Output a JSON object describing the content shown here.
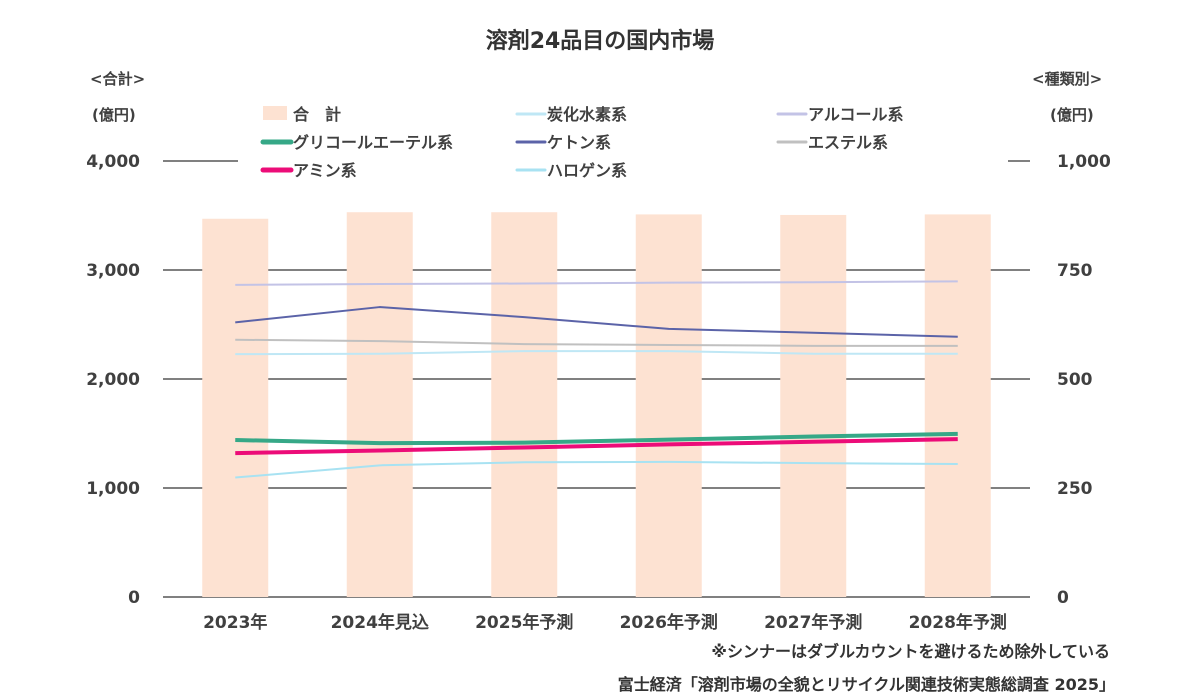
{
  "chart_data": {
    "type": "bar",
    "title": "溶剤24品目の国内市場",
    "categories": [
      "2023年",
      "2024年見込",
      "2025年予測",
      "2026年予測",
      "2027年予測",
      "2028年予測"
    ],
    "left_axis": {
      "label_top": "<合計>",
      "unit": "(億円)",
      "range": [
        0,
        4000
      ],
      "ticks": [
        "0",
        "1,000",
        "2,000",
        "3,000",
        "4,000"
      ],
      "tick_values": [
        0,
        1000,
        2000,
        3000,
        4000
      ]
    },
    "right_axis": {
      "label_top": "<種類別>",
      "unit": "(億円)",
      "range": [
        0,
        1000
      ],
      "ticks": [
        "0",
        "250",
        "500",
        "750",
        "1,000"
      ],
      "tick_values": [
        0,
        250,
        500,
        750,
        1000
      ]
    },
    "grid": true,
    "legend_position": "top",
    "bar_series": {
      "name": "合　計",
      "color": "#fde2d2",
      "axis": "left",
      "values": [
        3470,
        3530,
        3530,
        3510,
        3505,
        3510
      ]
    },
    "series": [
      {
        "name": "炭化水素系",
        "color": "#bfe7f5",
        "axis": "right",
        "width": 2,
        "values": [
          557,
          558,
          564,
          564,
          558,
          558
        ]
      },
      {
        "name": "アルコール系",
        "color": "#c3c3e6",
        "axis": "right",
        "width": 2,
        "values": [
          716,
          718,
          719,
          721,
          722,
          724
        ]
      },
      {
        "name": "グリコールエーテル系",
        "color": "#36a887",
        "axis": "right",
        "width": 4,
        "values": [
          360,
          353,
          354,
          361,
          368,
          374
        ]
      },
      {
        "name": "ケトン系",
        "color": "#5b63a8",
        "axis": "right",
        "width": 2,
        "values": [
          630,
          665,
          642,
          615,
          606,
          597
        ]
      },
      {
        "name": "エステル系",
        "color": "#c0c0c0",
        "axis": "right",
        "width": 2,
        "values": [
          590,
          587,
          580,
          578,
          576,
          576
        ]
      },
      {
        "name": "アミン系",
        "color": "#ec0c78",
        "axis": "right",
        "width": 4,
        "values": [
          330,
          336,
          343,
          350,
          356,
          362
        ]
      },
      {
        "name": "ハロゲン系",
        "color": "#a8e2f2",
        "axis": "right",
        "width": 2,
        "values": [
          274,
          302,
          309,
          310,
          307,
          305
        ]
      }
    ]
  },
  "notes": {
    "exclusion": "※シンナーはダブルカウントを避けるため除外している",
    "source": "富士経済「溶剤市場の全貌とリサイクル関連技術実態総調査 2025」"
  }
}
